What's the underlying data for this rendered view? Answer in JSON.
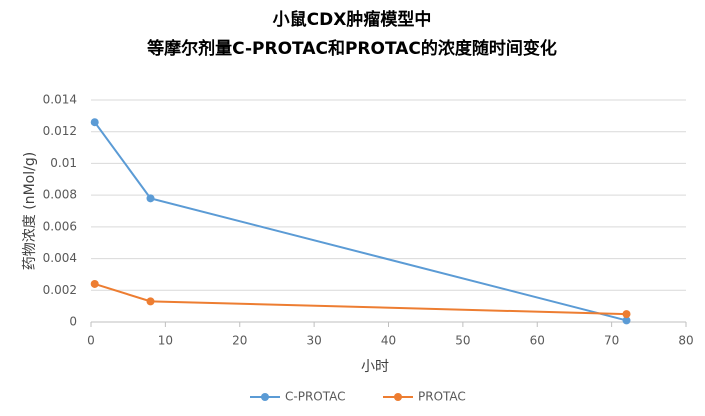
{
  "chart_data": {
    "type": "line",
    "title": [
      "小鼠CDX肿瘤模型中",
      "等摩尔剂量C-PROTAC和PROTAC的浓度随时间变化"
    ],
    "x_label": "小时",
    "y_label": "药物浓度 (nMol/g)",
    "x": [
      0.5,
      8,
      72
    ],
    "series": [
      {
        "name": "C-PROTAC",
        "color": "#5b9bd5",
        "values": [
          0.0126,
          0.0078,
          0.0001
        ]
      },
      {
        "name": "PROTAC",
        "color": "#ed7d31",
        "values": [
          0.0024,
          0.0013,
          0.0005
        ]
      }
    ],
    "xlim": [
      0,
      80
    ],
    "xticks": [
      0,
      10,
      20,
      30,
      40,
      50,
      60,
      70,
      80
    ],
    "ylim": [
      0,
      0.014
    ],
    "yticks": [
      0,
      0.002,
      0.004,
      0.006,
      0.008,
      0.01,
      0.012,
      0.014
    ],
    "grid": true,
    "legend": "bottom"
  }
}
